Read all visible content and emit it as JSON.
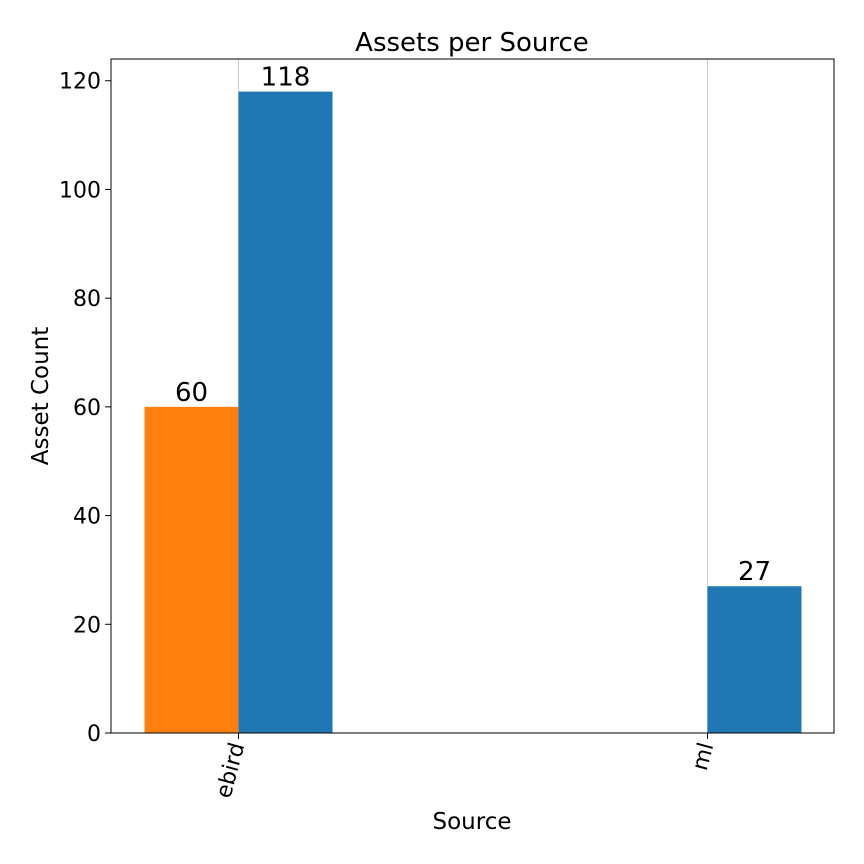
{
  "chart_data": {
    "type": "bar",
    "title": "Assets per Source",
    "xlabel": "Source",
    "ylabel": "Asset Count",
    "categories": [
      "ebird",
      "ml"
    ],
    "series": [
      {
        "values": [
          60,
          0
        ],
        "color": "#ff7f0e"
      },
      {
        "values": [
          118,
          27
        ],
        "color": "#1f77b4"
      }
    ],
    "data_labels": [
      {
        "category": "ebird",
        "series": 0,
        "text": "60",
        "value": 60
      },
      {
        "category": "ebird",
        "series": 1,
        "text": "118",
        "value": 118
      },
      {
        "category": "ml",
        "series": 1,
        "text": "27",
        "value": 27
      }
    ],
    "ylim": [
      0,
      124
    ],
    "yticks": [
      0,
      20,
      40,
      60,
      80,
      100,
      120
    ],
    "x_grid": true,
    "y_grid": false,
    "legend": "none"
  }
}
